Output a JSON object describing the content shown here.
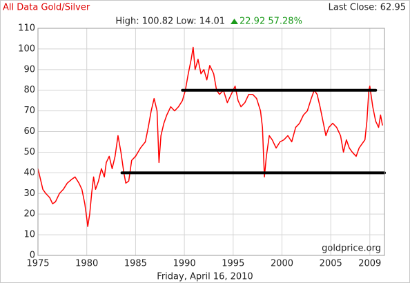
{
  "chart_data": {
    "type": "line",
    "title": "All Data Gold/Silver",
    "last_close": "Last Close: 62.95",
    "stats": "High: 100.82 Low: 14.01",
    "change": "22.92 57.28%",
    "date": "Friday, April 16, 2010",
    "watermark": "goldprice.org",
    "color": "#ff0000",
    "x": [
      1975.0,
      1975.2,
      1975.5,
      1975.8,
      1976.2,
      1976.5,
      1976.8,
      1977.2,
      1977.6,
      1978.0,
      1978.5,
      1978.8,
      1979.2,
      1979.5,
      1979.8,
      1980.0,
      1980.1,
      1980.3,
      1980.5,
      1980.7,
      1980.9,
      1981.2,
      1981.5,
      1981.8,
      1982.0,
      1982.3,
      1982.6,
      1982.9,
      1983.2,
      1983.5,
      1983.8,
      1984.0,
      1984.3,
      1984.6,
      1985.0,
      1985.5,
      1986.0,
      1986.3,
      1986.6,
      1986.9,
      1987.2,
      1987.4,
      1987.6,
      1987.9,
      1988.2,
      1988.6,
      1989.0,
      1989.4,
      1989.8,
      1990.1,
      1990.4,
      1990.7,
      1990.9,
      1991.1,
      1991.4,
      1991.7,
      1992.0,
      1992.3,
      1992.6,
      1993.0,
      1993.3,
      1993.6,
      1994.0,
      1994.4,
      1994.8,
      1995.2,
      1995.5,
      1995.8,
      1996.2,
      1996.6,
      1997.0,
      1997.4,
      1997.8,
      1998.0,
      1998.2,
      1998.4,
      1998.7,
      1999.0,
      1999.4,
      1999.8,
      2000.2,
      2000.6,
      2001.0,
      2001.4,
      2001.8,
      2002.2,
      2002.6,
      2003.0,
      2003.3,
      2003.6,
      2003.9,
      2004.2,
      2004.5,
      2004.8,
      2005.2,
      2005.6,
      2006.0,
      2006.3,
      2006.6,
      2006.9,
      2007.2,
      2007.6,
      2007.9,
      2008.2,
      2008.5,
      2008.7,
      2008.9,
      2009.0,
      2009.3,
      2009.6,
      2009.9,
      2010.1,
      2010.3
    ],
    "values": [
      42,
      38,
      32,
      30,
      28,
      25,
      26,
      30,
      32,
      35,
      37,
      38,
      35,
      32,
      25,
      18,
      14.01,
      20,
      30,
      38,
      32,
      36,
      42,
      38,
      45,
      48,
      42,
      48,
      58,
      50,
      40,
      35,
      36,
      46,
      48,
      52,
      55,
      62,
      70,
      76,
      70,
      45,
      58,
      64,
      68,
      72,
      70,
      72,
      75,
      80,
      88,
      95,
      100.82,
      90,
      95,
      88,
      90,
      85,
      92,
      88,
      80,
      78,
      80,
      74,
      78,
      82,
      75,
      72,
      74,
      78,
      78,
      76,
      70,
      62,
      38,
      48,
      58,
      56,
      52,
      55,
      56,
      58,
      55,
      62,
      64,
      68,
      70,
      76,
      80,
      78,
      72,
      65,
      58,
      62,
      64,
      62,
      58,
      50,
      56,
      52,
      50,
      48,
      52,
      54,
      56,
      65,
      80,
      82,
      72,
      65,
      62,
      68,
      62.95
    ],
    "reference_lines": [
      {
        "y": 80,
        "x": [
          1989.8,
          2009.6
        ]
      },
      {
        "y": 40,
        "x": [
          1983.6,
          2010.5
        ]
      }
    ],
    "xlim": [
      1975,
      2010.5
    ],
    "xticks": [
      1975,
      1980,
      1985,
      1990,
      1995,
      2000,
      2005,
      2009
    ],
    "ylim": [
      0,
      110
    ],
    "yticks": [
      0,
      10,
      20,
      30,
      40,
      50,
      60,
      70,
      80,
      90,
      100,
      110
    ],
    "grid": true
  }
}
